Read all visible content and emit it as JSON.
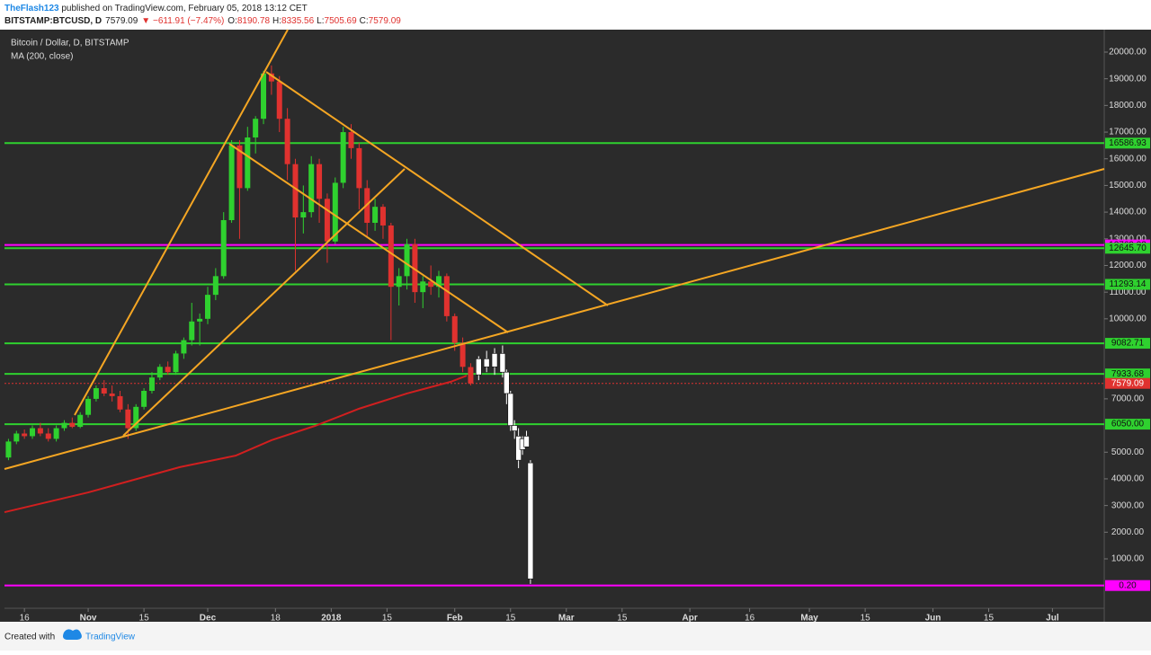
{
  "header": {
    "author": "TheFlash123",
    "published": " published on TradingView.com, February 05, 2018 13:12 CET",
    "symbol": "BITSTAMP:BTCUSD, D",
    "last": "7579.09",
    "change": "▼ −611.91 (−7.47%)",
    "ohlc": [
      {
        "key": "O:",
        "value": "8190.78"
      },
      {
        "key": "H:",
        "value": "8335.56"
      },
      {
        "key": "L:",
        "value": "7505.69"
      },
      {
        "key": "C:",
        "value": "7579.09"
      }
    ]
  },
  "chart_data": {
    "type": "candlestick",
    "title": "Bitcoin / Dollar, D, BITSTAMP",
    "study": "MA (200, close)",
    "xlim": [
      -1,
      275
    ],
    "ylim": [
      -1358,
      20842
    ],
    "xticks": [
      {
        "value": 4,
        "label": "16"
      },
      {
        "value": 20,
        "label": "Nov"
      },
      {
        "value": 34,
        "label": "15"
      },
      {
        "value": 50,
        "label": "Dec"
      },
      {
        "value": 67,
        "label": "18"
      },
      {
        "value": 81,
        "label": "2018"
      },
      {
        "value": 95,
        "label": "15"
      },
      {
        "value": 112,
        "label": "Feb"
      },
      {
        "value": 126,
        "label": "15"
      },
      {
        "value": 140,
        "label": "Mar"
      },
      {
        "value": 154,
        "label": "15"
      },
      {
        "value": 171,
        "label": "Apr"
      },
      {
        "value": 186,
        "label": "16"
      },
      {
        "value": 201,
        "label": "May"
      },
      {
        "value": 215,
        "label": "15"
      },
      {
        "value": 232,
        "label": "Jun"
      },
      {
        "value": 246,
        "label": "15"
      },
      {
        "value": 262,
        "label": "Jul"
      }
    ],
    "yticks": [
      {
        "value": 1000,
        "label": "1000.00"
      },
      {
        "value": 2000,
        "label": "2000.00"
      },
      {
        "value": 3000,
        "label": "3000.00"
      },
      {
        "value": 4000,
        "label": "4000.00"
      },
      {
        "value": 5000,
        "label": "5000.00"
      },
      {
        "value": 7000,
        "label": "7000.00"
      },
      {
        "value": 10000,
        "label": "10000.00"
      },
      {
        "value": 11000,
        "label": "11000.00"
      },
      {
        "value": 12000,
        "label": "12000.00"
      },
      {
        "value": 13000,
        "label": "13000.00"
      },
      {
        "value": 14000,
        "label": "14000.00"
      },
      {
        "value": 15000,
        "label": "15000.00"
      },
      {
        "value": 16000,
        "label": "16000.00"
      },
      {
        "value": 17000,
        "label": "17000.00"
      },
      {
        "value": 18000,
        "label": "18000.00"
      },
      {
        "value": 19000,
        "label": "19000.00"
      },
      {
        "value": 20000,
        "label": "20000.00"
      }
    ],
    "series": [
      {
        "up_color": "#2fd12f",
        "down_color": "#e0322f",
        "x": [
          0,
          2,
          4,
          6,
          8,
          10,
          12,
          14,
          16,
          18,
          20,
          22,
          24,
          26,
          28,
          30,
          32,
          34,
          36,
          38,
          40,
          42,
          44,
          46,
          48,
          50,
          52,
          54,
          56,
          58,
          60,
          62,
          64,
          66,
          68,
          70,
          72,
          74,
          76,
          78,
          80,
          82,
          84,
          86,
          88,
          90,
          92,
          94,
          96,
          98,
          100,
          102,
          104,
          106,
          108,
          110,
          112,
          114,
          116
        ],
        "open": [
          4800,
          5400,
          5700,
          5600,
          5900,
          5700,
          5500,
          5900,
          6100,
          5950,
          6400,
          7000,
          7400,
          7200,
          7100,
          6600,
          5900,
          6700,
          7300,
          7800,
          8200,
          8000,
          8700,
          9200,
          9900,
          10000,
          10900,
          11600,
          13700,
          16500,
          14900,
          16800,
          17500,
          19200,
          18900,
          17500,
          15800,
          13800,
          14000,
          15800,
          14500,
          12900,
          15100,
          17000,
          16400,
          14900,
          13600,
          14200,
          13500,
          11200,
          11600,
          12800,
          11000,
          11400,
          11200,
          11600,
          10100,
          9100,
          8190.78
        ],
        "high": [
          5500,
          5800,
          5850,
          6000,
          6100,
          5900,
          6000,
          6200,
          6300,
          6500,
          7100,
          7500,
          7700,
          7500,
          7300,
          6800,
          6800,
          7400,
          8000,
          8300,
          8400,
          8800,
          9300,
          10600,
          10200,
          11200,
          11900,
          14000,
          16700,
          16700,
          17200,
          17600,
          19300,
          19500,
          19100,
          17900,
          16000,
          15000,
          16100,
          16000,
          14700,
          15300,
          17200,
          17300,
          16600,
          15200,
          14500,
          14300,
          13600,
          11900,
          13000,
          13000,
          11600,
          12000,
          11800,
          11700,
          10200,
          9300,
          8335.56
        ],
        "low": [
          4700,
          5300,
          5500,
          5500,
          5600,
          5400,
          5400,
          5800,
          5900,
          5900,
          6300,
          6900,
          7100,
          6900,
          6500,
          5500,
          5800,
          6600,
          7200,
          7700,
          7900,
          7900,
          8500,
          9000,
          9000,
          9800,
          10700,
          11500,
          13600,
          13000,
          14800,
          16200,
          17300,
          18400,
          17000,
          15200,
          11800,
          13200,
          13800,
          13600,
          12100,
          12800,
          14900,
          16000,
          14100,
          13100,
          13300,
          13000,
          9200,
          10500,
          11100,
          10600,
          10400,
          10900,
          10800,
          9900,
          8800,
          8000,
          7505.69
        ],
        "close": [
          5400,
          5700,
          5600,
          5900,
          5700,
          5500,
          5900,
          6100,
          5950,
          6400,
          7000,
          7400,
          7200,
          7100,
          6600,
          5900,
          6700,
          7300,
          7800,
          8200,
          8000,
          8700,
          9200,
          9900,
          10000,
          10900,
          11600,
          13700,
          16500,
          14900,
          16800,
          17500,
          19200,
          18900,
          17500,
          15800,
          13800,
          14000,
          15800,
          14500,
          12900,
          15100,
          17000,
          16400,
          14900,
          13600,
          14200,
          13500,
          11200,
          11600,
          12800,
          11000,
          11400,
          11200,
          11600,
          10100,
          9100,
          8200,
          7579.09
        ]
      },
      {
        "up_color": "#ffffff",
        "down_color": "#ffffff",
        "x": [
          118,
          120,
          122,
          124,
          125,
          126,
          127,
          128,
          129,
          130,
          131
        ],
        "open": [
          7900,
          8500,
          8200,
          8700,
          8000,
          7200,
          6000,
          5600,
          5100,
          5600,
          4600
        ],
        "high": [
          8600,
          8800,
          8900,
          9000,
          8100,
          7300,
          6200,
          5900,
          5600,
          5800,
          4700
        ],
        "low": [
          7700,
          8000,
          7900,
          7800,
          6800,
          5800,
          5500,
          4400,
          4900,
          5200,
          60
        ],
        "close": [
          8500,
          8200,
          8700,
          8000,
          7200,
          6000,
          5800,
          4700,
          5500,
          5200,
          250
        ]
      }
    ],
    "ma": {
      "color": "#d11f1f",
      "x": [
        -1,
        20,
        43,
        57,
        66,
        77,
        88,
        100,
        111,
        115
      ],
      "values": [
        2750,
        3490,
        4440,
        4870,
        5450,
        5990,
        6630,
        7200,
        7640,
        7870
      ]
    },
    "levels": [
      {
        "value": 16586.93,
        "color": "#2fd12f"
      },
      {
        "value": 12769.93,
        "color": "#ff00ff"
      },
      {
        "value": {
          "value": 12645.7,
          "label": "12645.70"
        },
        "color": "#2fd12f"
      },
      {
        "value": 11293.14,
        "color": "#2fd12f"
      },
      {
        "value": 9082.71,
        "color": "#2fd12f"
      },
      {
        "value": 7933.68,
        "color": "#2fd12f"
      },
      {
        "value": 7579.09,
        "color": "#e0322f",
        "dashed": true
      },
      {
        "value": {
          "value": 6050,
          "label": "6050.00"
        },
        "color": "#2fd12f"
      },
      {
        "value": {
          "value": 0.2,
          "label": "0.20"
        },
        "color": "#ff00ff"
      }
    ]
  },
  "footer": {
    "created": "Created with",
    "brand": "TradingView"
  }
}
